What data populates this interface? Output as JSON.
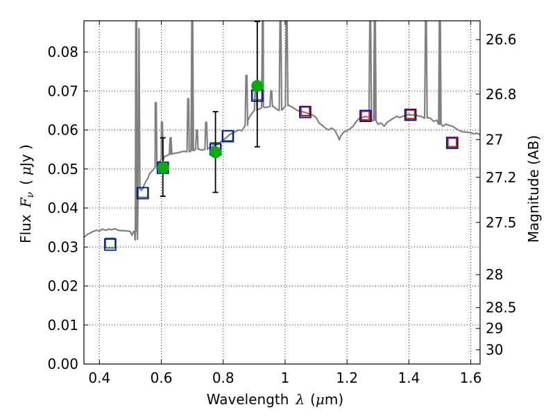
{
  "chart_data": {
    "type": "scatter",
    "xlabel": {
      "text": "Wavelength",
      "symbol": "λ",
      "unit_open": "(",
      "unit_mu": "μ",
      "unit_rest": "m)"
    },
    "ylabel": {
      "text": "Flux",
      "symbol": "F",
      "symbol_sub": "ν",
      "unit_open": "(",
      "unit_mu": "μ",
      "unit_rest": "Jy )"
    },
    "y2label": "Magnitude (AB)",
    "xlim": [
      0.35,
      1.63
    ],
    "ylim": [
      0.0,
      0.088
    ],
    "xticks": [
      {
        "value": 0.4,
        "label": "0.4"
      },
      {
        "value": 0.6,
        "label": "0.6"
      },
      {
        "value": 0.8,
        "label": "0.8"
      },
      {
        "value": 1.0,
        "label": "1"
      },
      {
        "value": 1.2,
        "label": "1.2"
      },
      {
        "value": 1.4,
        "label": "1.4"
      },
      {
        "value": 1.6,
        "label": "1.6"
      }
    ],
    "yticks": [
      {
        "value": 0.0,
        "label": "0.00"
      },
      {
        "value": 0.01,
        "label": "0.01"
      },
      {
        "value": 0.02,
        "label": "0.02"
      },
      {
        "value": 0.03,
        "label": "0.03"
      },
      {
        "value": 0.04,
        "label": "0.04"
      },
      {
        "value": 0.05,
        "label": "0.05"
      },
      {
        "value": 0.06,
        "label": "0.06"
      },
      {
        "value": 0.07,
        "label": "0.07"
      },
      {
        "value": 0.08,
        "label": "0.08"
      }
    ],
    "y2ticks": [
      {
        "mag": 26.6,
        "label": "26.6"
      },
      {
        "mag": 26.8,
        "label": "26.8"
      },
      {
        "mag": 27.0,
        "label": "27"
      },
      {
        "mag": 27.2,
        "label": "27.2"
      },
      {
        "mag": 27.5,
        "label": "27.5"
      },
      {
        "mag": 28.0,
        "label": "28"
      },
      {
        "mag": 28.5,
        "label": "28.5"
      },
      {
        "mag": 29.0,
        "label": "29"
      },
      {
        "mag": 30.0,
        "label": "30"
      }
    ],
    "grid": true,
    "grid_style": "dotted",
    "series": [
      {
        "kind": "line",
        "color": "#808080",
        "points": [
          [
            0.35,
            0.0325
          ],
          [
            0.36,
            0.0332
          ],
          [
            0.37,
            0.0336
          ],
          [
            0.38,
            0.034
          ],
          [
            0.39,
            0.0343
          ],
          [
            0.4,
            0.0341
          ],
          [
            0.41,
            0.0346
          ],
          [
            0.42,
            0.0343
          ],
          [
            0.43,
            0.0346
          ],
          [
            0.44,
            0.0344
          ],
          [
            0.45,
            0.0347
          ],
          [
            0.46,
            0.0343
          ],
          [
            0.47,
            0.0342
          ],
          [
            0.48,
            0.0342
          ],
          [
            0.49,
            0.0341
          ],
          [
            0.5,
            0.034
          ],
          [
            0.505,
            0.033
          ],
          [
            0.51,
            0.034
          ],
          [
            0.513,
            0.034
          ],
          [
            0.516,
            0.0318
          ],
          [
            0.519,
            0.034
          ],
          [
            0.522,
            0.04
          ],
          [
            0.525,
            0.044
          ],
          [
            0.528,
            0.086
          ],
          [
            0.531,
            0.045
          ],
          [
            0.535,
            0.0445
          ],
          [
            0.54,
            0.045
          ],
          [
            0.545,
            0.046
          ],
          [
            0.55,
            0.0468
          ],
          [
            0.556,
            0.0475
          ],
          [
            0.562,
            0.0488
          ],
          [
            0.57,
            0.0495
          ],
          [
            0.575,
            0.05
          ],
          [
            0.58,
            0.0505
          ],
          [
            0.59,
            0.0515
          ],
          [
            0.6,
            0.0525
          ],
          [
            0.61,
            0.0532
          ],
          [
            0.62,
            0.0535
          ],
          [
            0.63,
            0.0538
          ],
          [
            0.64,
            0.054
          ],
          [
            0.65,
            0.0541
          ],
          [
            0.66,
            0.0543
          ],
          [
            0.67,
            0.0545
          ],
          [
            0.68,
            0.0545
          ],
          [
            0.69,
            0.0546
          ],
          [
            0.7,
            0.0548
          ],
          [
            0.71,
            0.055
          ],
          [
            0.72,
            0.0552
          ],
          [
            0.73,
            0.0548
          ],
          [
            0.74,
            0.0551
          ],
          [
            0.75,
            0.0553
          ],
          [
            0.76,
            0.0555
          ],
          [
            0.77,
            0.056
          ],
          [
            0.78,
            0.0562
          ],
          [
            0.79,
            0.0568
          ],
          [
            0.8,
            0.0575
          ],
          [
            0.81,
            0.058
          ],
          [
            0.82,
            0.0588
          ],
          [
            0.83,
            0.0592
          ],
          [
            0.84,
            0.0596
          ],
          [
            0.85,
            0.06
          ],
          [
            0.86,
            0.0598
          ],
          [
            0.87,
            0.061
          ],
          [
            0.88,
            0.0625
          ],
          [
            0.89,
            0.064
          ],
          [
            0.9,
            0.065
          ],
          [
            0.91,
            0.0652
          ],
          [
            0.92,
            0.0655
          ],
          [
            0.93,
            0.066
          ],
          [
            0.94,
            0.0658
          ],
          [
            0.95,
            0.066
          ],
          [
            0.96,
            0.0662
          ],
          [
            0.97,
            0.0655
          ],
          [
            0.98,
            0.065
          ],
          [
            0.99,
            0.0652
          ],
          [
            1.0,
            0.066
          ],
          [
            1.01,
            0.0664
          ],
          [
            1.02,
            0.066
          ],
          [
            1.03,
            0.0655
          ],
          [
            1.04,
            0.065
          ],
          [
            1.05,
            0.0648
          ],
          [
            1.06,
            0.0646
          ],
          [
            1.07,
            0.0644
          ],
          [
            1.08,
            0.064
          ],
          [
            1.09,
            0.0638
          ],
          [
            1.1,
            0.0632
          ],
          [
            1.11,
            0.0618
          ],
          [
            1.12,
            0.0612
          ],
          [
            1.13,
            0.0605
          ],
          [
            1.14,
            0.06
          ],
          [
            1.15,
            0.0605
          ],
          [
            1.16,
            0.06
          ],
          [
            1.17,
            0.0585
          ],
          [
            1.175,
            0.0575
          ],
          [
            1.18,
            0.0585
          ],
          [
            1.19,
            0.0595
          ],
          [
            1.2,
            0.0598
          ],
          [
            1.21,
            0.0603
          ],
          [
            1.22,
            0.061
          ],
          [
            1.23,
            0.0622
          ],
          [
            1.24,
            0.063
          ],
          [
            1.25,
            0.0632
          ],
          [
            1.26,
            0.0635
          ],
          [
            1.27,
            0.0632
          ],
          [
            1.28,
            0.0625
          ],
          [
            1.29,
            0.0625
          ],
          [
            1.3,
            0.0615
          ],
          [
            1.31,
            0.0618
          ],
          [
            1.32,
            0.061
          ],
          [
            1.33,
            0.062
          ],
          [
            1.34,
            0.0625
          ],
          [
            1.35,
            0.063
          ],
          [
            1.36,
            0.0635
          ],
          [
            1.37,
            0.0632
          ],
          [
            1.38,
            0.0635
          ],
          [
            1.39,
            0.0638
          ],
          [
            1.4,
            0.064
          ],
          [
            1.41,
            0.0638
          ],
          [
            1.42,
            0.064
          ],
          [
            1.43,
            0.0636
          ],
          [
            1.44,
            0.0635
          ],
          [
            1.45,
            0.063
          ],
          [
            1.46,
            0.0632
          ],
          [
            1.47,
            0.063
          ],
          [
            1.48,
            0.0622
          ],
          [
            1.49,
            0.0625
          ],
          [
            1.5,
            0.0615
          ],
          [
            1.51,
            0.061
          ],
          [
            1.52,
            0.0615
          ],
          [
            1.53,
            0.0612
          ],
          [
            1.54,
            0.061
          ],
          [
            1.55,
            0.0605
          ],
          [
            1.56,
            0.06
          ],
          [
            1.57,
            0.0596
          ],
          [
            1.58,
            0.0595
          ],
          [
            1.59,
            0.0594
          ],
          [
            1.6,
            0.0593
          ],
          [
            1.61,
            0.059
          ],
          [
            1.62,
            0.0592
          ],
          [
            1.63,
            0.0588
          ]
        ],
        "peaks": [
          [
            0.519,
            0.032,
            0.088
          ],
          [
            0.582,
            0.0502,
            0.067
          ],
          [
            0.602,
            0.0522,
            0.062
          ],
          [
            0.63,
            0.0538,
            0.058
          ],
          [
            0.687,
            0.0544,
            0.068
          ],
          [
            0.7,
            0.0547,
            0.088
          ],
          [
            0.715,
            0.055,
            0.06
          ],
          [
            0.745,
            0.055,
            0.062
          ],
          [
            0.875,
            0.0612,
            0.074
          ],
          [
            0.905,
            0.065,
            0.072
          ],
          [
            0.928,
            0.0658,
            0.088
          ],
          [
            0.955,
            0.066,
            0.07
          ],
          [
            0.985,
            0.0651,
            0.088
          ],
          [
            1.005,
            0.0662,
            0.088
          ],
          [
            1.275,
            0.063,
            0.088
          ],
          [
            1.29,
            0.0624,
            0.088
          ],
          [
            1.455,
            0.0631,
            0.088
          ],
          [
            1.5,
            0.0615,
            0.088
          ]
        ]
      },
      {
        "kind": "model-band",
        "marker": "square",
        "color": "#008000",
        "points": [
          [
            0.435,
            0.031
          ],
          [
            0.54,
            0.044
          ],
          [
            0.605,
            0.0505
          ],
          [
            0.775,
            0.0555
          ],
          [
            0.815,
            0.0585
          ],
          [
            0.91,
            0.069
          ],
          [
            1.065,
            0.0648
          ],
          [
            1.26,
            0.0637
          ],
          [
            1.405,
            0.064
          ],
          [
            1.54,
            0.0568
          ]
        ]
      },
      {
        "kind": "model-band",
        "marker": "square",
        "color": "#ff0000",
        "points": [
          [
            1.065,
            0.0648
          ],
          [
            1.26,
            0.0637
          ],
          [
            1.405,
            0.064
          ],
          [
            1.54,
            0.0568
          ]
        ]
      },
      {
        "kind": "model-band",
        "marker": "square",
        "color": "#0000cc",
        "points": [
          [
            0.435,
            0.0306
          ],
          [
            0.54,
            0.0438
          ],
          [
            0.605,
            0.0503
          ],
          [
            0.775,
            0.055
          ],
          [
            0.815,
            0.0584
          ],
          [
            0.91,
            0.0688
          ],
          [
            1.065,
            0.0646
          ],
          [
            1.26,
            0.0636
          ],
          [
            1.405,
            0.0639
          ],
          [
            1.54,
            0.0567
          ]
        ]
      },
      {
        "kind": "observed",
        "marker": "circle",
        "color": "#00b000",
        "points": [
          {
            "x": 0.605,
            "y": 0.0503,
            "yerr": [
              0.043,
              0.058
            ]
          },
          {
            "x": 0.775,
            "y": 0.0543,
            "yerr": [
              0.044,
              0.0647
            ]
          },
          {
            "x": 0.91,
            "y": 0.0713,
            "yerr": [
              0.0557,
              0.0878
            ]
          }
        ]
      }
    ]
  }
}
